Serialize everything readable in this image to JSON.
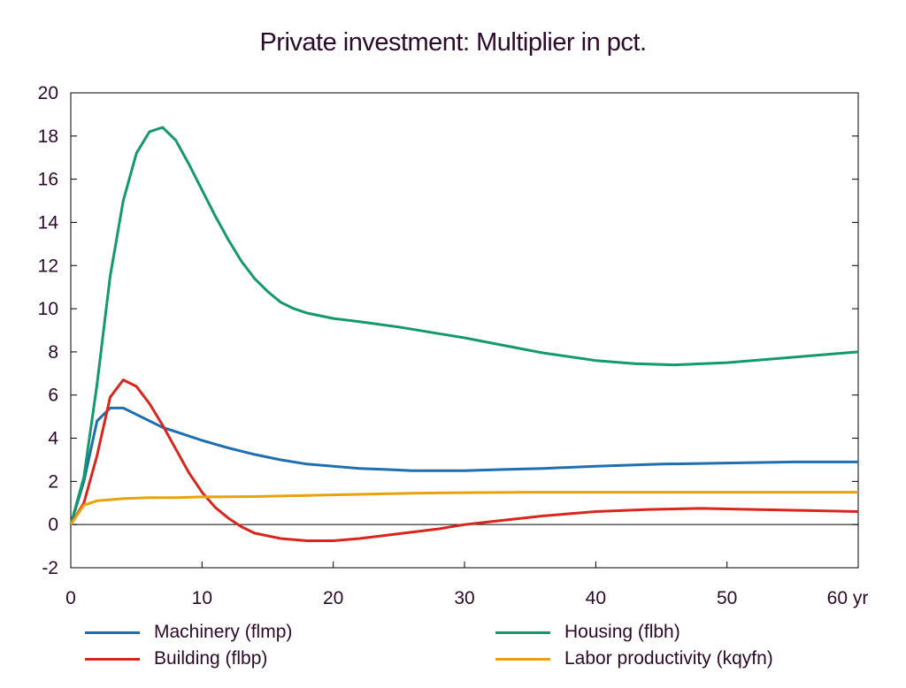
{
  "chart_data": {
    "type": "line",
    "title": "Private investment: Multiplier in pct.",
    "xlim": [
      0,
      60
    ],
    "ylim": [
      -2,
      20
    ],
    "x_ticks": [
      {
        "value": 0,
        "label": "0"
      },
      {
        "value": 10,
        "label": "10"
      },
      {
        "value": 20,
        "label": "20"
      },
      {
        "value": 30,
        "label": "30"
      },
      {
        "value": 40,
        "label": "40"
      },
      {
        "value": 50,
        "label": "50"
      },
      {
        "value": 60,
        "label": "60 yr"
      }
    ],
    "y_ticks": [
      -2,
      0,
      2,
      4,
      6,
      8,
      10,
      12,
      14,
      16,
      18,
      20
    ],
    "grid": false,
    "legend_position": "bottom",
    "series": [
      {
        "name": "Machinery (flmp)",
        "color": "#1f6fb0",
        "points": [
          [
            0,
            0
          ],
          [
            1,
            2.0
          ],
          [
            2,
            4.8
          ],
          [
            3,
            5.4
          ],
          [
            4,
            5.4
          ],
          [
            5,
            5.1
          ],
          [
            6,
            4.8
          ],
          [
            7,
            4.5
          ],
          [
            8,
            4.3
          ],
          [
            10,
            3.9
          ],
          [
            12,
            3.55
          ],
          [
            14,
            3.25
          ],
          [
            16,
            3.0
          ],
          [
            18,
            2.8
          ],
          [
            20,
            2.7
          ],
          [
            22,
            2.6
          ],
          [
            24,
            2.55
          ],
          [
            26,
            2.5
          ],
          [
            28,
            2.5
          ],
          [
            30,
            2.5
          ],
          [
            33,
            2.55
          ],
          [
            36,
            2.6
          ],
          [
            40,
            2.7
          ],
          [
            45,
            2.8
          ],
          [
            50,
            2.85
          ],
          [
            55,
            2.9
          ],
          [
            60,
            2.9
          ]
        ]
      },
      {
        "name": "Housing (flbh)",
        "color": "#13996b",
        "points": [
          [
            0,
            0
          ],
          [
            1,
            2.2
          ],
          [
            2,
            6.5
          ],
          [
            3,
            11.5
          ],
          [
            4,
            15.0
          ],
          [
            5,
            17.2
          ],
          [
            6,
            18.2
          ],
          [
            7,
            18.4
          ],
          [
            8,
            17.8
          ],
          [
            9,
            16.7
          ],
          [
            10,
            15.5
          ],
          [
            11,
            14.3
          ],
          [
            12,
            13.2
          ],
          [
            13,
            12.2
          ],
          [
            14,
            11.4
          ],
          [
            15,
            10.8
          ],
          [
            16,
            10.3
          ],
          [
            17,
            10.0
          ],
          [
            18,
            9.8
          ],
          [
            20,
            9.55
          ],
          [
            22,
            9.4
          ],
          [
            25,
            9.15
          ],
          [
            28,
            8.85
          ],
          [
            30,
            8.65
          ],
          [
            33,
            8.3
          ],
          [
            36,
            7.95
          ],
          [
            40,
            7.6
          ],
          [
            43,
            7.45
          ],
          [
            46,
            7.4
          ],
          [
            50,
            7.5
          ],
          [
            55,
            7.75
          ],
          [
            60,
            8.0
          ]
        ]
      },
      {
        "name": "Building (flbp)",
        "color": "#d9261c",
        "points": [
          [
            0,
            0
          ],
          [
            1,
            1.0
          ],
          [
            2,
            3.2
          ],
          [
            3,
            5.9
          ],
          [
            4,
            6.7
          ],
          [
            5,
            6.4
          ],
          [
            6,
            5.6
          ],
          [
            7,
            4.6
          ],
          [
            8,
            3.5
          ],
          [
            9,
            2.4
          ],
          [
            10,
            1.5
          ],
          [
            11,
            0.8
          ],
          [
            12,
            0.3
          ],
          [
            13,
            -0.1
          ],
          [
            14,
            -0.4
          ],
          [
            16,
            -0.65
          ],
          [
            18,
            -0.75
          ],
          [
            20,
            -0.75
          ],
          [
            22,
            -0.65
          ],
          [
            24,
            -0.5
          ],
          [
            26,
            -0.35
          ],
          [
            28,
            -0.2
          ],
          [
            30,
            0.0
          ],
          [
            33,
            0.2
          ],
          [
            36,
            0.4
          ],
          [
            40,
            0.6
          ],
          [
            44,
            0.7
          ],
          [
            48,
            0.75
          ],
          [
            52,
            0.7
          ],
          [
            56,
            0.65
          ],
          [
            60,
            0.6
          ]
        ]
      },
      {
        "name": "Labor productivity (kqyfn)",
        "color": "#e8a30c",
        "points": [
          [
            0,
            0
          ],
          [
            1,
            0.9
          ],
          [
            2,
            1.1
          ],
          [
            3,
            1.15
          ],
          [
            4,
            1.2
          ],
          [
            6,
            1.25
          ],
          [
            8,
            1.25
          ],
          [
            10,
            1.28
          ],
          [
            14,
            1.3
          ],
          [
            18,
            1.35
          ],
          [
            22,
            1.4
          ],
          [
            26,
            1.45
          ],
          [
            30,
            1.48
          ],
          [
            35,
            1.5
          ],
          [
            40,
            1.5
          ],
          [
            50,
            1.5
          ],
          [
            60,
            1.5
          ]
        ]
      }
    ]
  }
}
